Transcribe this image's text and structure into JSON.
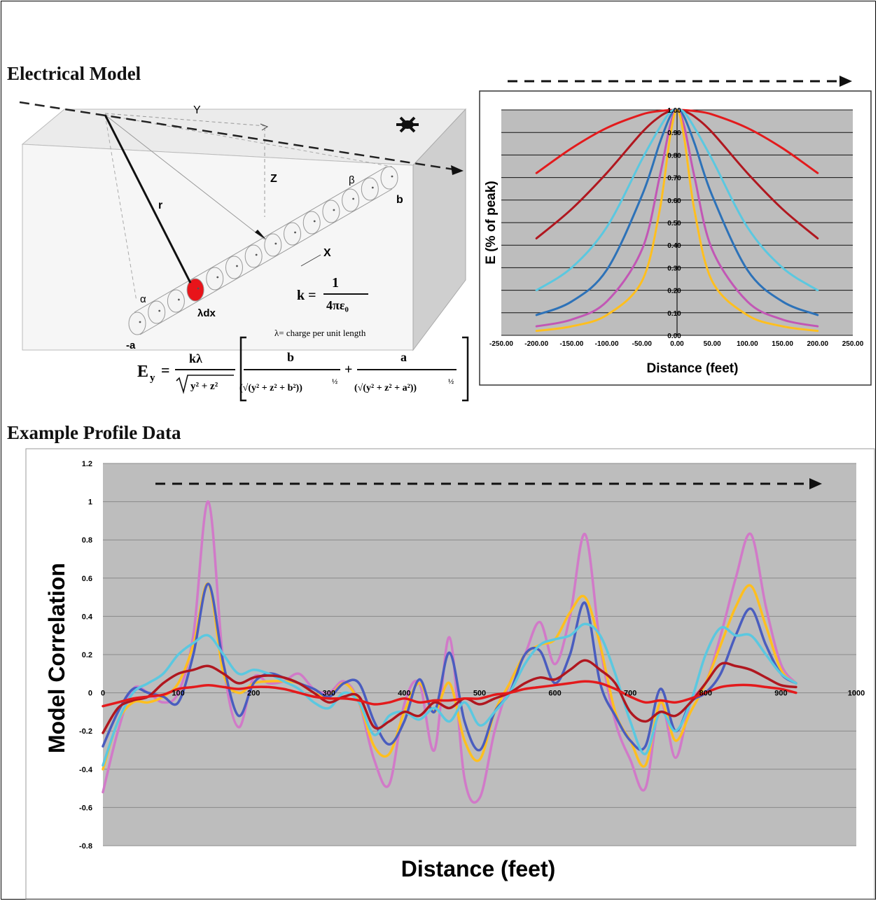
{
  "headings": {
    "electrical_model": "Electrical Model",
    "example_profile": "Example Profile Data"
  },
  "diagram": {
    "labels": {
      "y": "Y",
      "z": "Z",
      "r": "r",
      "x": "X",
      "beta": "β",
      "b": "b",
      "alpha": "α",
      "neg_a": "-a",
      "lambda_dx": "λdx",
      "k_lhs": "k =",
      "k_num": "1",
      "k_den": "4πε₀",
      "charge_note": "λ= charge per unit length"
    },
    "formula": {
      "lhs": "E",
      "lhs_sub": "y",
      "eq": "=",
      "coef_num": "kλ",
      "coef_den": "y² + z²",
      "t1_num": "b",
      "t1_den": "(√(y² + z² + b²))",
      "plus": "+",
      "t2_num": "a",
      "t2_den": "(√(y² + z² + a²))",
      "exp": "½"
    },
    "colors": {
      "segment": "#e8141a"
    }
  },
  "chart_data": [
    {
      "type": "line",
      "title": "",
      "xlabel": "Distance (feet)",
      "ylabel": "E (% of peak)",
      "xlim": [
        -250,
        250
      ],
      "ylim": [
        0,
        1
      ],
      "grid": true,
      "x_ticks": [
        "-250.00",
        "-200.00",
        "-150.00",
        "-100.00",
        "-50.00",
        "0.00",
        "50.00",
        "100.00",
        "150.00",
        "200.00",
        "250.00"
      ],
      "y_ticks": [
        "0.00",
        "0.10",
        "0.20",
        "0.30",
        "0.40",
        "0.50",
        "0.60",
        "0.70",
        "0.80",
        "0.90",
        "1.00"
      ],
      "x": [
        -200,
        -150,
        -100,
        -50,
        -25,
        -10,
        0,
        10,
        25,
        50,
        100,
        150,
        200
      ],
      "series": [
        {
          "color": "#e31a1c",
          "values": [
            0.72,
            0.83,
            0.92,
            0.98,
            0.995,
            0.999,
            1.0,
            0.999,
            0.995,
            0.98,
            0.92,
            0.83,
            0.72
          ]
        },
        {
          "color": "#b0171f",
          "values": [
            0.43,
            0.56,
            0.72,
            0.9,
            0.97,
            0.995,
            1.0,
            0.995,
            0.97,
            0.9,
            0.72,
            0.56,
            0.43
          ]
        },
        {
          "color": "#5bc8e0",
          "values": [
            0.2,
            0.3,
            0.48,
            0.78,
            0.92,
            0.99,
            1.0,
            0.99,
            0.92,
            0.78,
            0.48,
            0.3,
            0.2
          ]
        },
        {
          "color": "#2d72b8",
          "values": [
            0.09,
            0.15,
            0.29,
            0.62,
            0.85,
            0.97,
            1.0,
            0.97,
            0.85,
            0.62,
            0.29,
            0.15,
            0.09
          ]
        },
        {
          "color": "#c257b5",
          "values": [
            0.04,
            0.07,
            0.15,
            0.38,
            0.7,
            0.93,
            1.0,
            0.93,
            0.7,
            0.38,
            0.15,
            0.07,
            0.04
          ]
        },
        {
          "color": "#ffbf1f",
          "values": [
            0.02,
            0.04,
            0.09,
            0.24,
            0.55,
            0.88,
            1.0,
            0.88,
            0.55,
            0.24,
            0.09,
            0.04,
            0.02
          ]
        }
      ]
    },
    {
      "type": "line",
      "title": "",
      "xlabel": "Distance (feet)",
      "ylabel": "Model Correlation",
      "xlim": [
        0,
        1000
      ],
      "ylim": [
        -0.8,
        1.2
      ],
      "grid": true,
      "x_ticks": [
        "0",
        "100",
        "200",
        "300",
        "400",
        "500",
        "600",
        "700",
        "800",
        "900",
        "1000"
      ],
      "y_ticks": [
        "-0.8",
        "-0.6",
        "-0.4",
        "-0.2",
        "0",
        "0.2",
        "0.4",
        "0.6",
        "0.8",
        "1",
        "1.2"
      ],
      "x": [
        0,
        20,
        40,
        60,
        80,
        100,
        120,
        140,
        160,
        180,
        200,
        220,
        240,
        260,
        280,
        300,
        320,
        340,
        360,
        380,
        400,
        420,
        440,
        460,
        480,
        500,
        520,
        540,
        560,
        580,
        600,
        620,
        640,
        660,
        680,
        700,
        720,
        740,
        760,
        780,
        800,
        820,
        840,
        860,
        880,
        900,
        920
      ],
      "series": [
        {
          "color": "#d17ac8",
          "values": [
            -0.52,
            -0.2,
            0.02,
            0.0,
            -0.05,
            0.0,
            0.3,
            1.0,
            0.15,
            -0.18,
            0.08,
            0.05,
            0.06,
            0.1,
            0.02,
            0.0,
            0.06,
            -0.05,
            -0.35,
            -0.48,
            -0.06,
            0.05,
            -0.3,
            0.29,
            -0.45,
            -0.55,
            -0.2,
            0.05,
            0.2,
            0.37,
            0.15,
            0.4,
            0.83,
            0.25,
            -0.15,
            -0.35,
            -0.5,
            -0.05,
            -0.34,
            -0.05,
            0.05,
            0.3,
            0.6,
            0.83,
            0.45,
            0.15,
            0.05
          ]
        },
        {
          "color": "#ffbf1f",
          "values": [
            -0.4,
            -0.15,
            -0.05,
            -0.05,
            -0.02,
            0.05,
            0.25,
            0.57,
            0.1,
            0.0,
            0.05,
            0.06,
            0.06,
            0.05,
            0.0,
            -0.02,
            0.05,
            -0.05,
            -0.28,
            -0.32,
            -0.1,
            0.05,
            -0.1,
            0.05,
            -0.25,
            -0.35,
            -0.1,
            0.05,
            0.2,
            0.25,
            0.28,
            0.42,
            0.5,
            0.25,
            -0.1,
            -0.25,
            -0.38,
            -0.05,
            -0.25,
            -0.1,
            0.05,
            0.25,
            0.45,
            0.56,
            0.35,
            0.12,
            0.05
          ]
        },
        {
          "color": "#4a5dbf",
          "values": [
            -0.28,
            -0.1,
            0.02,
            0.0,
            -0.02,
            -0.05,
            0.2,
            0.57,
            0.15,
            -0.12,
            0.05,
            0.1,
            0.08,
            0.05,
            0.02,
            -0.02,
            0.05,
            0.05,
            -0.15,
            -0.27,
            -0.15,
            0.07,
            -0.1,
            0.21,
            -0.15,
            -0.3,
            -0.1,
            0.0,
            0.2,
            0.22,
            0.05,
            0.2,
            0.47,
            0.05,
            -0.12,
            -0.25,
            -0.28,
            0.02,
            -0.2,
            -0.05,
            0.0,
            0.1,
            0.3,
            0.44,
            0.25,
            0.1,
            0.05
          ]
        },
        {
          "color": "#5bc8e0",
          "values": [
            -0.38,
            -0.15,
            0.0,
            0.05,
            0.1,
            0.2,
            0.26,
            0.3,
            0.2,
            0.1,
            0.12,
            0.1,
            0.06,
            0.02,
            -0.05,
            -0.08,
            0.0,
            -0.05,
            -0.22,
            -0.12,
            -0.1,
            -0.14,
            -0.08,
            -0.15,
            -0.05,
            -0.17,
            -0.1,
            0.0,
            0.15,
            0.25,
            0.28,
            0.3,
            0.36,
            0.3,
            0.1,
            -0.15,
            -0.32,
            -0.1,
            -0.2,
            -0.05,
            0.2,
            0.34,
            0.3,
            0.3,
            0.2,
            0.1,
            0.05
          ]
        },
        {
          "color": "#b0171f",
          "values": [
            -0.21,
            -0.08,
            -0.04,
            -0.02,
            0.05,
            0.1,
            0.12,
            0.14,
            0.1,
            0.05,
            0.08,
            0.09,
            0.08,
            0.05,
            0.0,
            -0.05,
            -0.02,
            -0.02,
            -0.18,
            -0.15,
            -0.1,
            -0.12,
            -0.05,
            -0.08,
            -0.03,
            -0.06,
            -0.03,
            0.0,
            0.05,
            0.08,
            0.07,
            0.12,
            0.17,
            0.12,
            0.05,
            -0.1,
            -0.15,
            -0.1,
            -0.12,
            -0.05,
            0.05,
            0.15,
            0.14,
            0.12,
            0.08,
            0.04,
            0.03
          ]
        },
        {
          "color": "#e31a1c",
          "values": [
            -0.07,
            -0.05,
            -0.03,
            -0.02,
            -0.01,
            0.02,
            0.03,
            0.04,
            0.03,
            0.02,
            0.03,
            0.03,
            0.02,
            0.0,
            -0.02,
            -0.03,
            -0.03,
            -0.04,
            -0.06,
            -0.05,
            -0.03,
            -0.05,
            -0.04,
            -0.04,
            -0.03,
            -0.03,
            -0.01,
            0.0,
            0.02,
            0.03,
            0.04,
            0.05,
            0.06,
            0.05,
            0.02,
            -0.02,
            -0.05,
            -0.04,
            -0.05,
            -0.03,
            0.0,
            0.03,
            0.04,
            0.04,
            0.03,
            0.02,
            0.0
          ]
        }
      ]
    }
  ]
}
